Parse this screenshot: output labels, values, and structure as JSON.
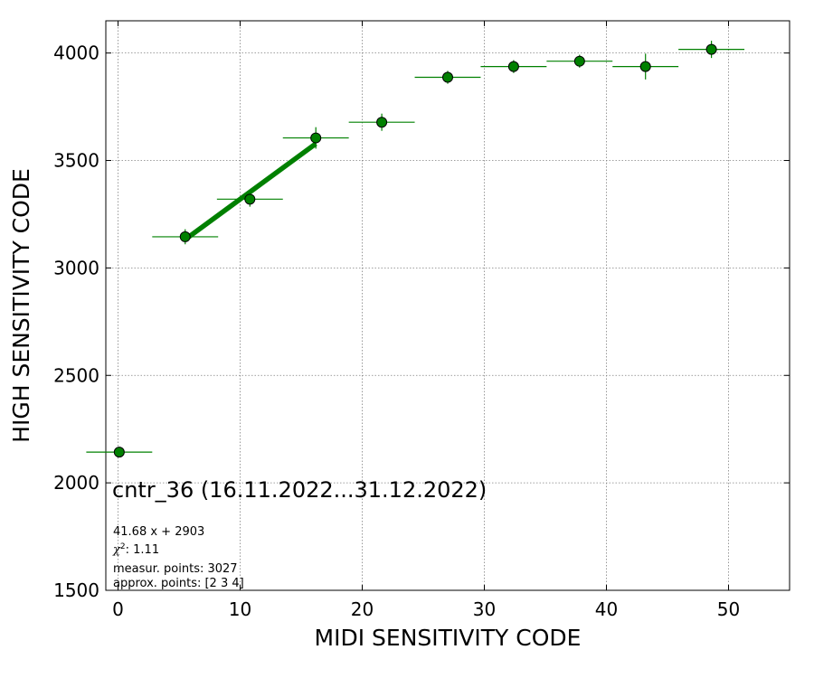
{
  "chart_data": {
    "type": "scatter",
    "xlabel": "MIDI SENSITIVITY CODE",
    "ylabel": "HIGH SENSITIVITY CODE",
    "xlim": [
      -1,
      55
    ],
    "ylim": [
      1500,
      4150
    ],
    "xticks": [
      0,
      10,
      20,
      30,
      40,
      50
    ],
    "yticks": [
      1500,
      2000,
      2500,
      3000,
      3500,
      4000
    ],
    "grid": true,
    "series": [
      {
        "color": "#008000",
        "points": [
          {
            "x": 0.1,
            "y": 2143,
            "xerr": 2.7,
            "yerr": 0
          },
          {
            "x": 5.5,
            "y": 3145,
            "xerr": 2.7,
            "yerr": 35
          },
          {
            "x": 10.8,
            "y": 3320,
            "xerr": 2.7,
            "yerr": 35
          },
          {
            "x": 16.2,
            "y": 3605,
            "xerr": 2.7,
            "yerr": 50
          },
          {
            "x": 21.6,
            "y": 3678,
            "xerr": 2.7,
            "yerr": 40
          },
          {
            "x": 27.0,
            "y": 3887,
            "xerr": 2.7,
            "yerr": 30
          },
          {
            "x": 32.4,
            "y": 3937,
            "xerr": 2.7,
            "yerr": 30
          },
          {
            "x": 37.8,
            "y": 3962,
            "xerr": 2.7,
            "yerr": 30
          },
          {
            "x": 43.2,
            "y": 3937,
            "xerr": 2.7,
            "yerr": 60
          },
          {
            "x": 48.6,
            "y": 4017,
            "xerr": 2.7,
            "yerr": 40
          }
        ]
      }
    ],
    "fit": {
      "slope": 41.68,
      "intercept": 2903,
      "x_range": [
        5.5,
        16.2
      ],
      "color": "#008000"
    },
    "annotations": {
      "title": "cntr_36 (16.11.2022...31.12.2022)",
      "equation": "41.68 x + 2903",
      "chi2_value": "1.11",
      "measur_points": "measur. points: 3027",
      "approx_points": "approx. points: [2 3 4]"
    }
  }
}
